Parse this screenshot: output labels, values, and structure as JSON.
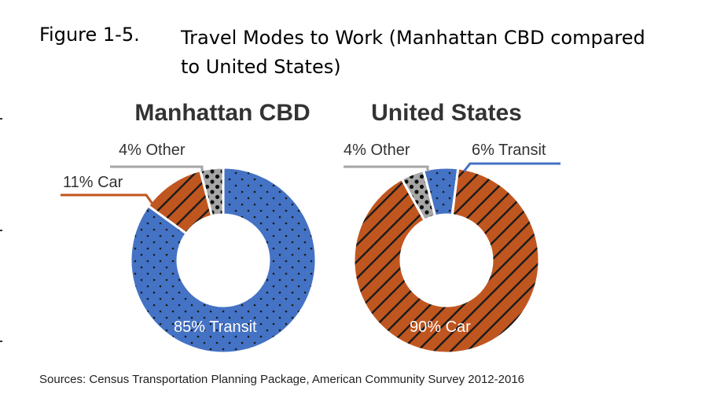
{
  "figure": {
    "number": "Figure 1-5.",
    "title": "Travel Modes to Work (Manhattan CBD compared to United States)",
    "source": "Sources: Census Transportation Planning Package, American Community Survey 2012-2016"
  },
  "colors": {
    "transit": "#4472c4",
    "car": "#c0561f",
    "other": "#a6a6a6",
    "pattern_mark": "#1a1a1a"
  },
  "chart_data": [
    {
      "type": "pie",
      "title": "Manhattan CBD",
      "slices": [
        {
          "key": "transit",
          "value": 85,
          "label": "85% Transit",
          "label_position": "inside-bottom"
        },
        {
          "key": "car",
          "value": 11,
          "label": "11% Car",
          "label_position": "left"
        },
        {
          "key": "other",
          "value": 4,
          "label": "4% Other",
          "label_position": "top-left"
        }
      ]
    },
    {
      "type": "pie",
      "title": "United States",
      "slices": [
        {
          "key": "transit",
          "value": 6,
          "label": "6% Transit",
          "label_position": "top-right"
        },
        {
          "key": "car",
          "value": 90,
          "label": "90% Car",
          "label_position": "inside-bottom"
        },
        {
          "key": "other",
          "value": 4,
          "label": "4% Other",
          "label_position": "top-left"
        }
      ]
    }
  ]
}
